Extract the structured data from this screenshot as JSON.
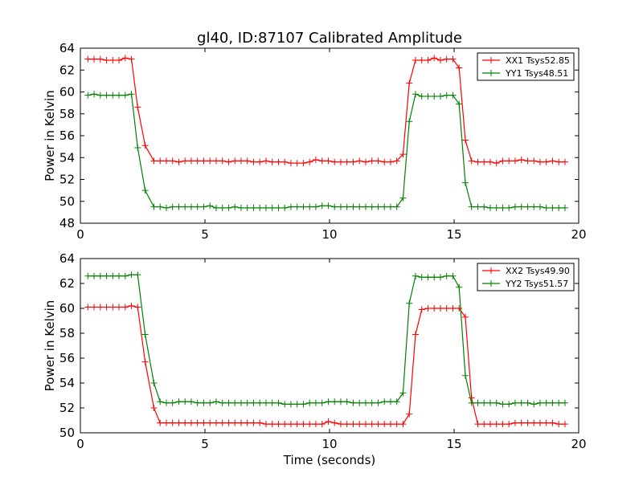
{
  "title": "gl40, ID:87107 Calibrated Amplitude",
  "colors": {
    "xx": "#ff0000",
    "yy": "#008000"
  },
  "chart_data": [
    {
      "type": "line",
      "ylabel": "Power in Kelvin",
      "xlabel": "",
      "xlim": [
        0,
        20
      ],
      "ylim": [
        48,
        64
      ],
      "xticks": [
        0,
        5,
        10,
        15,
        20
      ],
      "yticks": [
        48,
        50,
        52,
        54,
        56,
        58,
        60,
        62,
        64
      ],
      "grid": false,
      "legend_position": "top-right",
      "x": [
        0.3,
        0.55,
        0.8,
        1.05,
        1.3,
        1.55,
        1.8,
        2.05,
        2.3,
        2.6,
        2.95,
        3.2,
        3.45,
        3.7,
        3.95,
        4.2,
        4.45,
        4.7,
        4.95,
        5.2,
        5.45,
        5.7,
        5.95,
        6.2,
        6.45,
        6.7,
        6.95,
        7.2,
        7.45,
        7.7,
        7.95,
        8.2,
        8.45,
        8.7,
        8.95,
        9.2,
        9.45,
        9.7,
        9.95,
        10.2,
        10.45,
        10.7,
        10.95,
        11.2,
        11.45,
        11.7,
        11.95,
        12.2,
        12.45,
        12.7,
        12.95,
        13.2,
        13.45,
        13.7,
        13.95,
        14.2,
        14.45,
        14.7,
        14.95,
        15.2,
        15.45,
        15.7,
        15.95,
        16.2,
        16.45,
        16.7,
        16.95,
        17.2,
        17.45,
        17.7,
        17.95,
        18.2,
        18.45,
        18.7,
        18.95,
        19.2,
        19.45
      ],
      "series": [
        {
          "name": "XX1 Tsys52.85",
          "color": "#ff0000",
          "values": [
            63.0,
            63.0,
            63.0,
            62.9,
            62.9,
            62.9,
            63.1,
            63.0,
            58.6,
            55.1,
            53.7,
            53.7,
            53.7,
            53.7,
            53.6,
            53.7,
            53.7,
            53.7,
            53.7,
            53.7,
            53.7,
            53.7,
            53.6,
            53.7,
            53.7,
            53.7,
            53.6,
            53.6,
            53.7,
            53.6,
            53.6,
            53.6,
            53.5,
            53.5,
            53.5,
            53.6,
            53.8,
            53.7,
            53.7,
            53.6,
            53.6,
            53.6,
            53.6,
            53.7,
            53.6,
            53.7,
            53.7,
            53.6,
            53.6,
            53.7,
            54.3,
            60.8,
            62.9,
            62.9,
            62.9,
            63.1,
            62.9,
            63.0,
            63.0,
            62.2,
            55.6,
            53.7,
            53.6,
            53.6,
            53.6,
            53.5,
            53.7,
            53.7,
            53.7,
            53.8,
            53.7,
            53.7,
            53.6,
            53.6,
            53.7,
            53.6,
            53.6
          ]
        },
        {
          "name": "YY1 Tsys48.51",
          "color": "#008000",
          "values": [
            59.7,
            59.8,
            59.7,
            59.7,
            59.7,
            59.7,
            59.7,
            59.8,
            54.9,
            51.0,
            49.5,
            49.5,
            49.4,
            49.5,
            49.5,
            49.5,
            49.5,
            49.5,
            49.5,
            49.6,
            49.4,
            49.4,
            49.4,
            49.5,
            49.4,
            49.4,
            49.4,
            49.4,
            49.4,
            49.4,
            49.4,
            49.4,
            49.5,
            49.5,
            49.5,
            49.5,
            49.5,
            49.6,
            49.6,
            49.5,
            49.5,
            49.5,
            49.5,
            49.5,
            49.5,
            49.5,
            49.5,
            49.5,
            49.5,
            49.5,
            50.3,
            57.3,
            59.8,
            59.6,
            59.6,
            59.6,
            59.6,
            59.7,
            59.7,
            58.9,
            51.7,
            49.5,
            49.5,
            49.5,
            49.4,
            49.4,
            49.4,
            49.4,
            49.5,
            49.5,
            49.5,
            49.5,
            49.5,
            49.4,
            49.4,
            49.4,
            49.4
          ]
        }
      ]
    },
    {
      "type": "line",
      "ylabel": "Power in Kelvin",
      "xlabel": "Time (seconds)",
      "xlim": [
        0,
        20
      ],
      "ylim": [
        50,
        64
      ],
      "xticks": [
        0,
        5,
        10,
        15,
        20
      ],
      "yticks": [
        50,
        52,
        54,
        56,
        58,
        60,
        62,
        64
      ],
      "grid": false,
      "legend_position": "top-right",
      "x": [
        0.3,
        0.55,
        0.8,
        1.05,
        1.3,
        1.55,
        1.8,
        2.05,
        2.3,
        2.6,
        2.95,
        3.2,
        3.45,
        3.7,
        3.95,
        4.2,
        4.45,
        4.7,
        4.95,
        5.2,
        5.45,
        5.7,
        5.95,
        6.2,
        6.45,
        6.7,
        6.95,
        7.2,
        7.45,
        7.7,
        7.95,
        8.2,
        8.45,
        8.7,
        8.95,
        9.2,
        9.45,
        9.7,
        9.95,
        10.2,
        10.45,
        10.7,
        10.95,
        11.2,
        11.45,
        11.7,
        11.95,
        12.2,
        12.45,
        12.7,
        12.95,
        13.2,
        13.45,
        13.7,
        13.95,
        14.2,
        14.45,
        14.7,
        14.95,
        15.2,
        15.45,
        15.7,
        15.95,
        16.2,
        16.45,
        16.7,
        16.95,
        17.2,
        17.45,
        17.7,
        17.95,
        18.2,
        18.45,
        18.7,
        18.95,
        19.2,
        19.45
      ],
      "series": [
        {
          "name": "XX2 Tsys49.90",
          "color": "#ff0000",
          "values": [
            60.1,
            60.1,
            60.1,
            60.1,
            60.1,
            60.1,
            60.1,
            60.2,
            60.1,
            55.7,
            52.0,
            50.8,
            50.8,
            50.8,
            50.8,
            50.8,
            50.8,
            50.8,
            50.8,
            50.8,
            50.8,
            50.8,
            50.8,
            50.8,
            50.8,
            50.8,
            50.8,
            50.8,
            50.7,
            50.7,
            50.7,
            50.7,
            50.7,
            50.7,
            50.7,
            50.7,
            50.7,
            50.7,
            50.9,
            50.8,
            50.7,
            50.7,
            50.7,
            50.7,
            50.7,
            50.7,
            50.7,
            50.7,
            50.7,
            50.7,
            50.7,
            51.5,
            57.9,
            59.9,
            60.0,
            60.0,
            60.0,
            60.0,
            60.0,
            60.0,
            59.3,
            52.8,
            50.7,
            50.7,
            50.7,
            50.7,
            50.7,
            50.7,
            50.8,
            50.8,
            50.8,
            50.8,
            50.8,
            50.8,
            50.8,
            50.7,
            50.7
          ]
        },
        {
          "name": "YY2 Tsys51.57",
          "color": "#008000",
          "values": [
            62.6,
            62.6,
            62.6,
            62.6,
            62.6,
            62.6,
            62.6,
            62.7,
            62.7,
            57.9,
            54.0,
            52.5,
            52.4,
            52.4,
            52.5,
            52.5,
            52.5,
            52.4,
            52.4,
            52.4,
            52.5,
            52.4,
            52.4,
            52.4,
            52.4,
            52.4,
            52.4,
            52.4,
            52.4,
            52.4,
            52.4,
            52.3,
            52.3,
            52.3,
            52.3,
            52.4,
            52.4,
            52.4,
            52.5,
            52.5,
            52.5,
            52.5,
            52.4,
            52.4,
            52.4,
            52.4,
            52.4,
            52.5,
            52.5,
            52.5,
            53.2,
            60.4,
            62.6,
            62.5,
            62.5,
            62.5,
            62.5,
            62.6,
            62.6,
            61.7,
            54.6,
            52.4,
            52.4,
            52.4,
            52.4,
            52.4,
            52.3,
            52.3,
            52.4,
            52.4,
            52.4,
            52.3,
            52.4,
            52.4,
            52.4,
            52.4,
            52.4
          ]
        }
      ]
    }
  ]
}
